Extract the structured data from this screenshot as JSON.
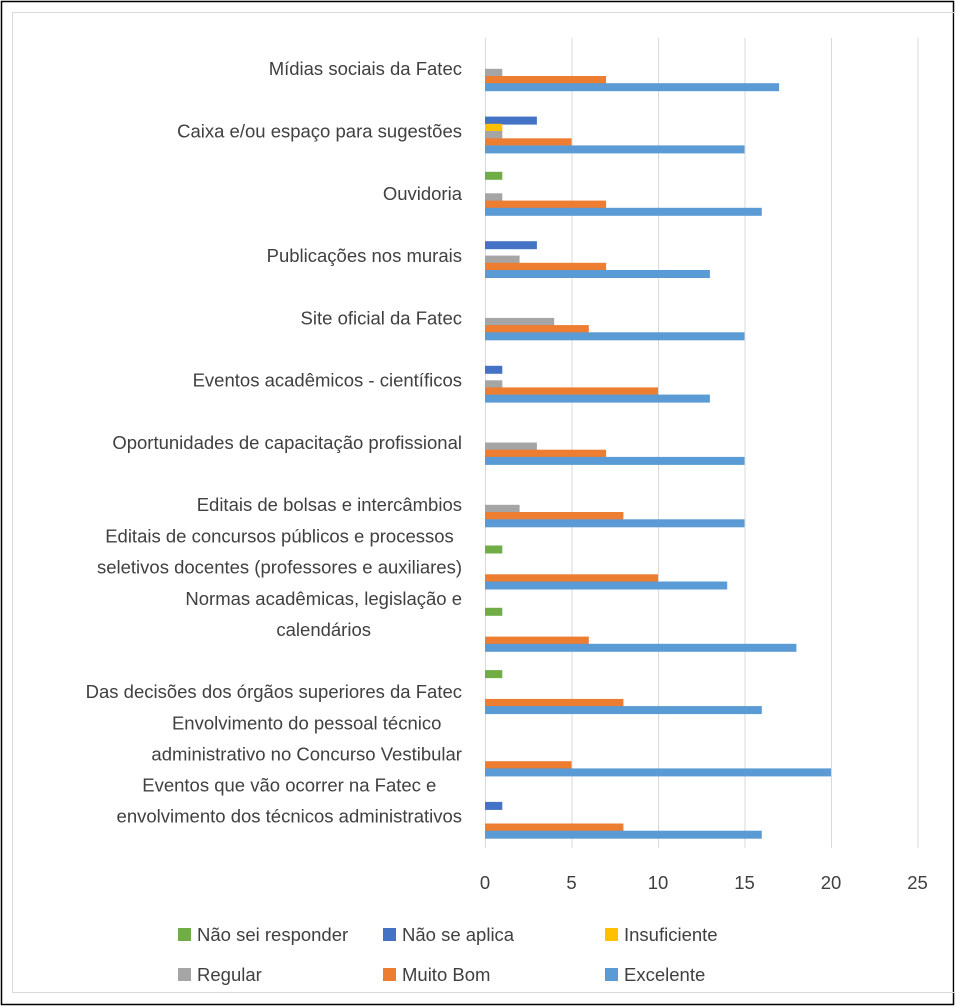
{
  "chart_data": {
    "type": "bar",
    "orientation": "horizontal",
    "title": "",
    "xlabel": "",
    "ylabel": "",
    "xlim": [
      0,
      25
    ],
    "x_ticks": [
      "0",
      "5",
      "10",
      "15",
      "20",
      "25"
    ],
    "grid": true,
    "legend_position": "bottom",
    "categories": [
      [
        "Mídias sociais da Fatec"
      ],
      [
        "Caixa e/ou espaço para sugestões"
      ],
      [
        "Ouvidoria"
      ],
      [
        "Publicações nos murais"
      ],
      [
        "Site oficial da Fatec"
      ],
      [
        "Eventos acadêmicos - científicos"
      ],
      [
        "Oportunidades de capacitação profissional"
      ],
      [
        "Editais de bolsas e intercâmbios"
      ],
      [
        "Editais de concursos públicos e processos",
        "seletivos docentes (professores e auxiliares)"
      ],
      [
        "Normas acadêmicas, legislação e",
        "calendários"
      ],
      [
        "Das decisões dos órgãos superiores da Fatec"
      ],
      [
        "Envolvimento do pessoal técnico",
        "administrativo no Concurso Vestibular"
      ],
      [
        "Eventos que vão ocorrer na Fatec e",
        "envolvimento dos técnicos administrativos"
      ]
    ],
    "series": [
      {
        "name": "Não sei responder",
        "color": "#70AD47",
        "values": [
          0,
          0,
          1,
          0,
          0,
          0,
          0,
          0,
          1,
          1,
          1,
          0,
          0
        ]
      },
      {
        "name": "Não se aplica",
        "color": "#4472C4",
        "values": [
          0,
          3,
          0,
          3,
          0,
          1,
          0,
          0,
          0,
          0,
          0,
          0,
          1
        ]
      },
      {
        "name": "Insuficiente",
        "color": "#FFC000",
        "values": [
          0,
          1,
          0,
          0,
          0,
          0,
          0,
          0,
          0,
          0,
          0,
          0,
          0
        ]
      },
      {
        "name": "Regular",
        "color": "#A5A5A5",
        "values": [
          1,
          1,
          1,
          2,
          4,
          1,
          3,
          2,
          0,
          0,
          0,
          0,
          0
        ]
      },
      {
        "name": "Muito Bom",
        "color": "#ED7D31",
        "values": [
          7,
          5,
          7,
          7,
          6,
          10,
          7,
          8,
          10,
          6,
          8,
          5,
          8
        ]
      },
      {
        "name": "Excelente",
        "color": "#5B9BD5",
        "values": [
          17,
          15,
          16,
          13,
          15,
          13,
          15,
          15,
          14,
          18,
          16,
          20,
          16
        ]
      }
    ],
    "legend_order": [
      "Não sei responder",
      "Não se aplica",
      "Insuficiente",
      "Regular",
      "Muito Bom",
      "Excelente"
    ]
  }
}
